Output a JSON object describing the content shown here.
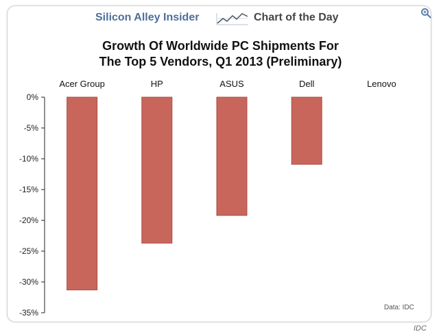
{
  "header": {
    "brand": "Silicon Alley Insider",
    "section": "Chart of the Day",
    "brand_color": "#4d6f9a"
  },
  "chart_data": {
    "type": "bar",
    "title_lines": [
      "Growth Of Worldwide PC Shipments For",
      "The Top 5 Vendors, Q1 2013 (Preliminary)"
    ],
    "categories": [
      "Acer Group",
      "HP",
      "ASUS",
      "Dell",
      "Lenovo"
    ],
    "values": [
      -31.3,
      -23.7,
      -19.2,
      -10.9,
      0.0
    ],
    "ylim": [
      -35,
      0
    ],
    "yticks": [
      0,
      -5,
      -10,
      -15,
      -20,
      -25,
      -30,
      -35
    ],
    "ytick_labels": [
      "0%",
      "-5%",
      "-10%",
      "-15%",
      "-20%",
      "-25%",
      "-30%",
      "-35%"
    ],
    "category_labels_position": "top",
    "grid": false,
    "bar_color": "#c9665b",
    "bar_edge_color": "#a84c42",
    "source": "Data: IDC"
  },
  "footer": {
    "credit": "IDC"
  }
}
